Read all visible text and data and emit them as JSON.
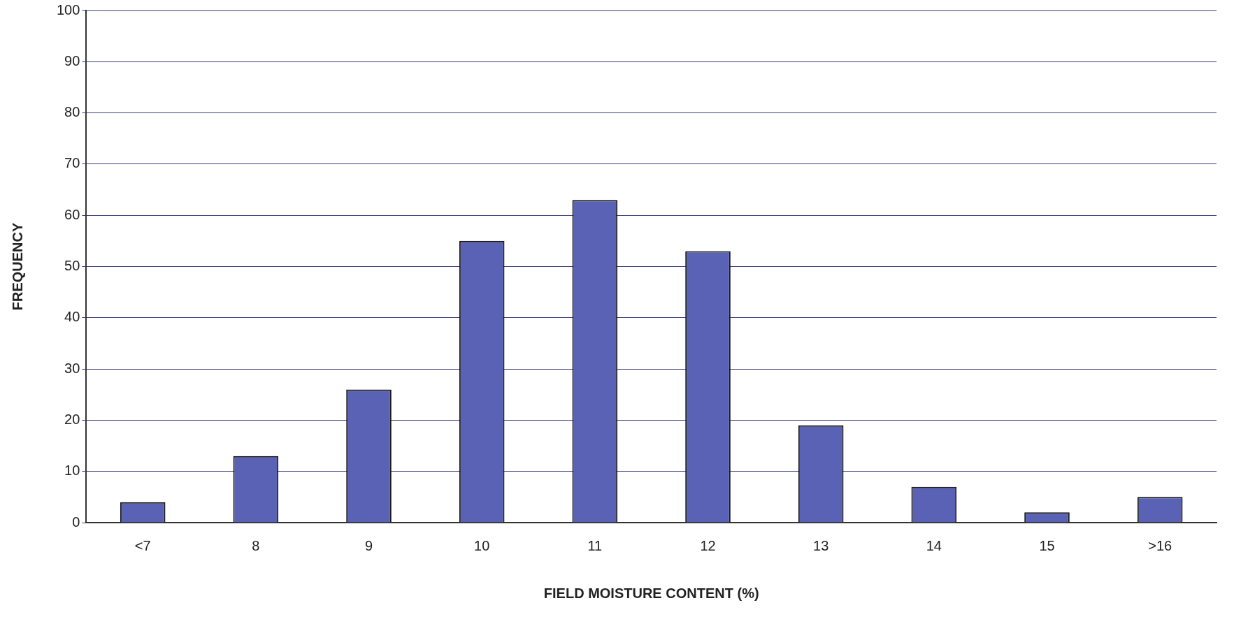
{
  "chart_data": {
    "type": "bar",
    "xlabel": "FIELD MOISTURE CONTENT (%)",
    "ylabel": "FREQUENCY",
    "categories": [
      "<7",
      "8",
      "9",
      "10",
      "11",
      "12",
      "13",
      "14",
      "15",
      ">16"
    ],
    "values": [
      4,
      13,
      26,
      55,
      63,
      53,
      19,
      7,
      2,
      5
    ],
    "color": "#5a62b6",
    "ylim": [
      0,
      100
    ],
    "yticks": [
      0,
      10,
      20,
      30,
      40,
      50,
      60,
      70,
      80,
      90,
      100
    ],
    "grid": "y",
    "legend": false
  }
}
